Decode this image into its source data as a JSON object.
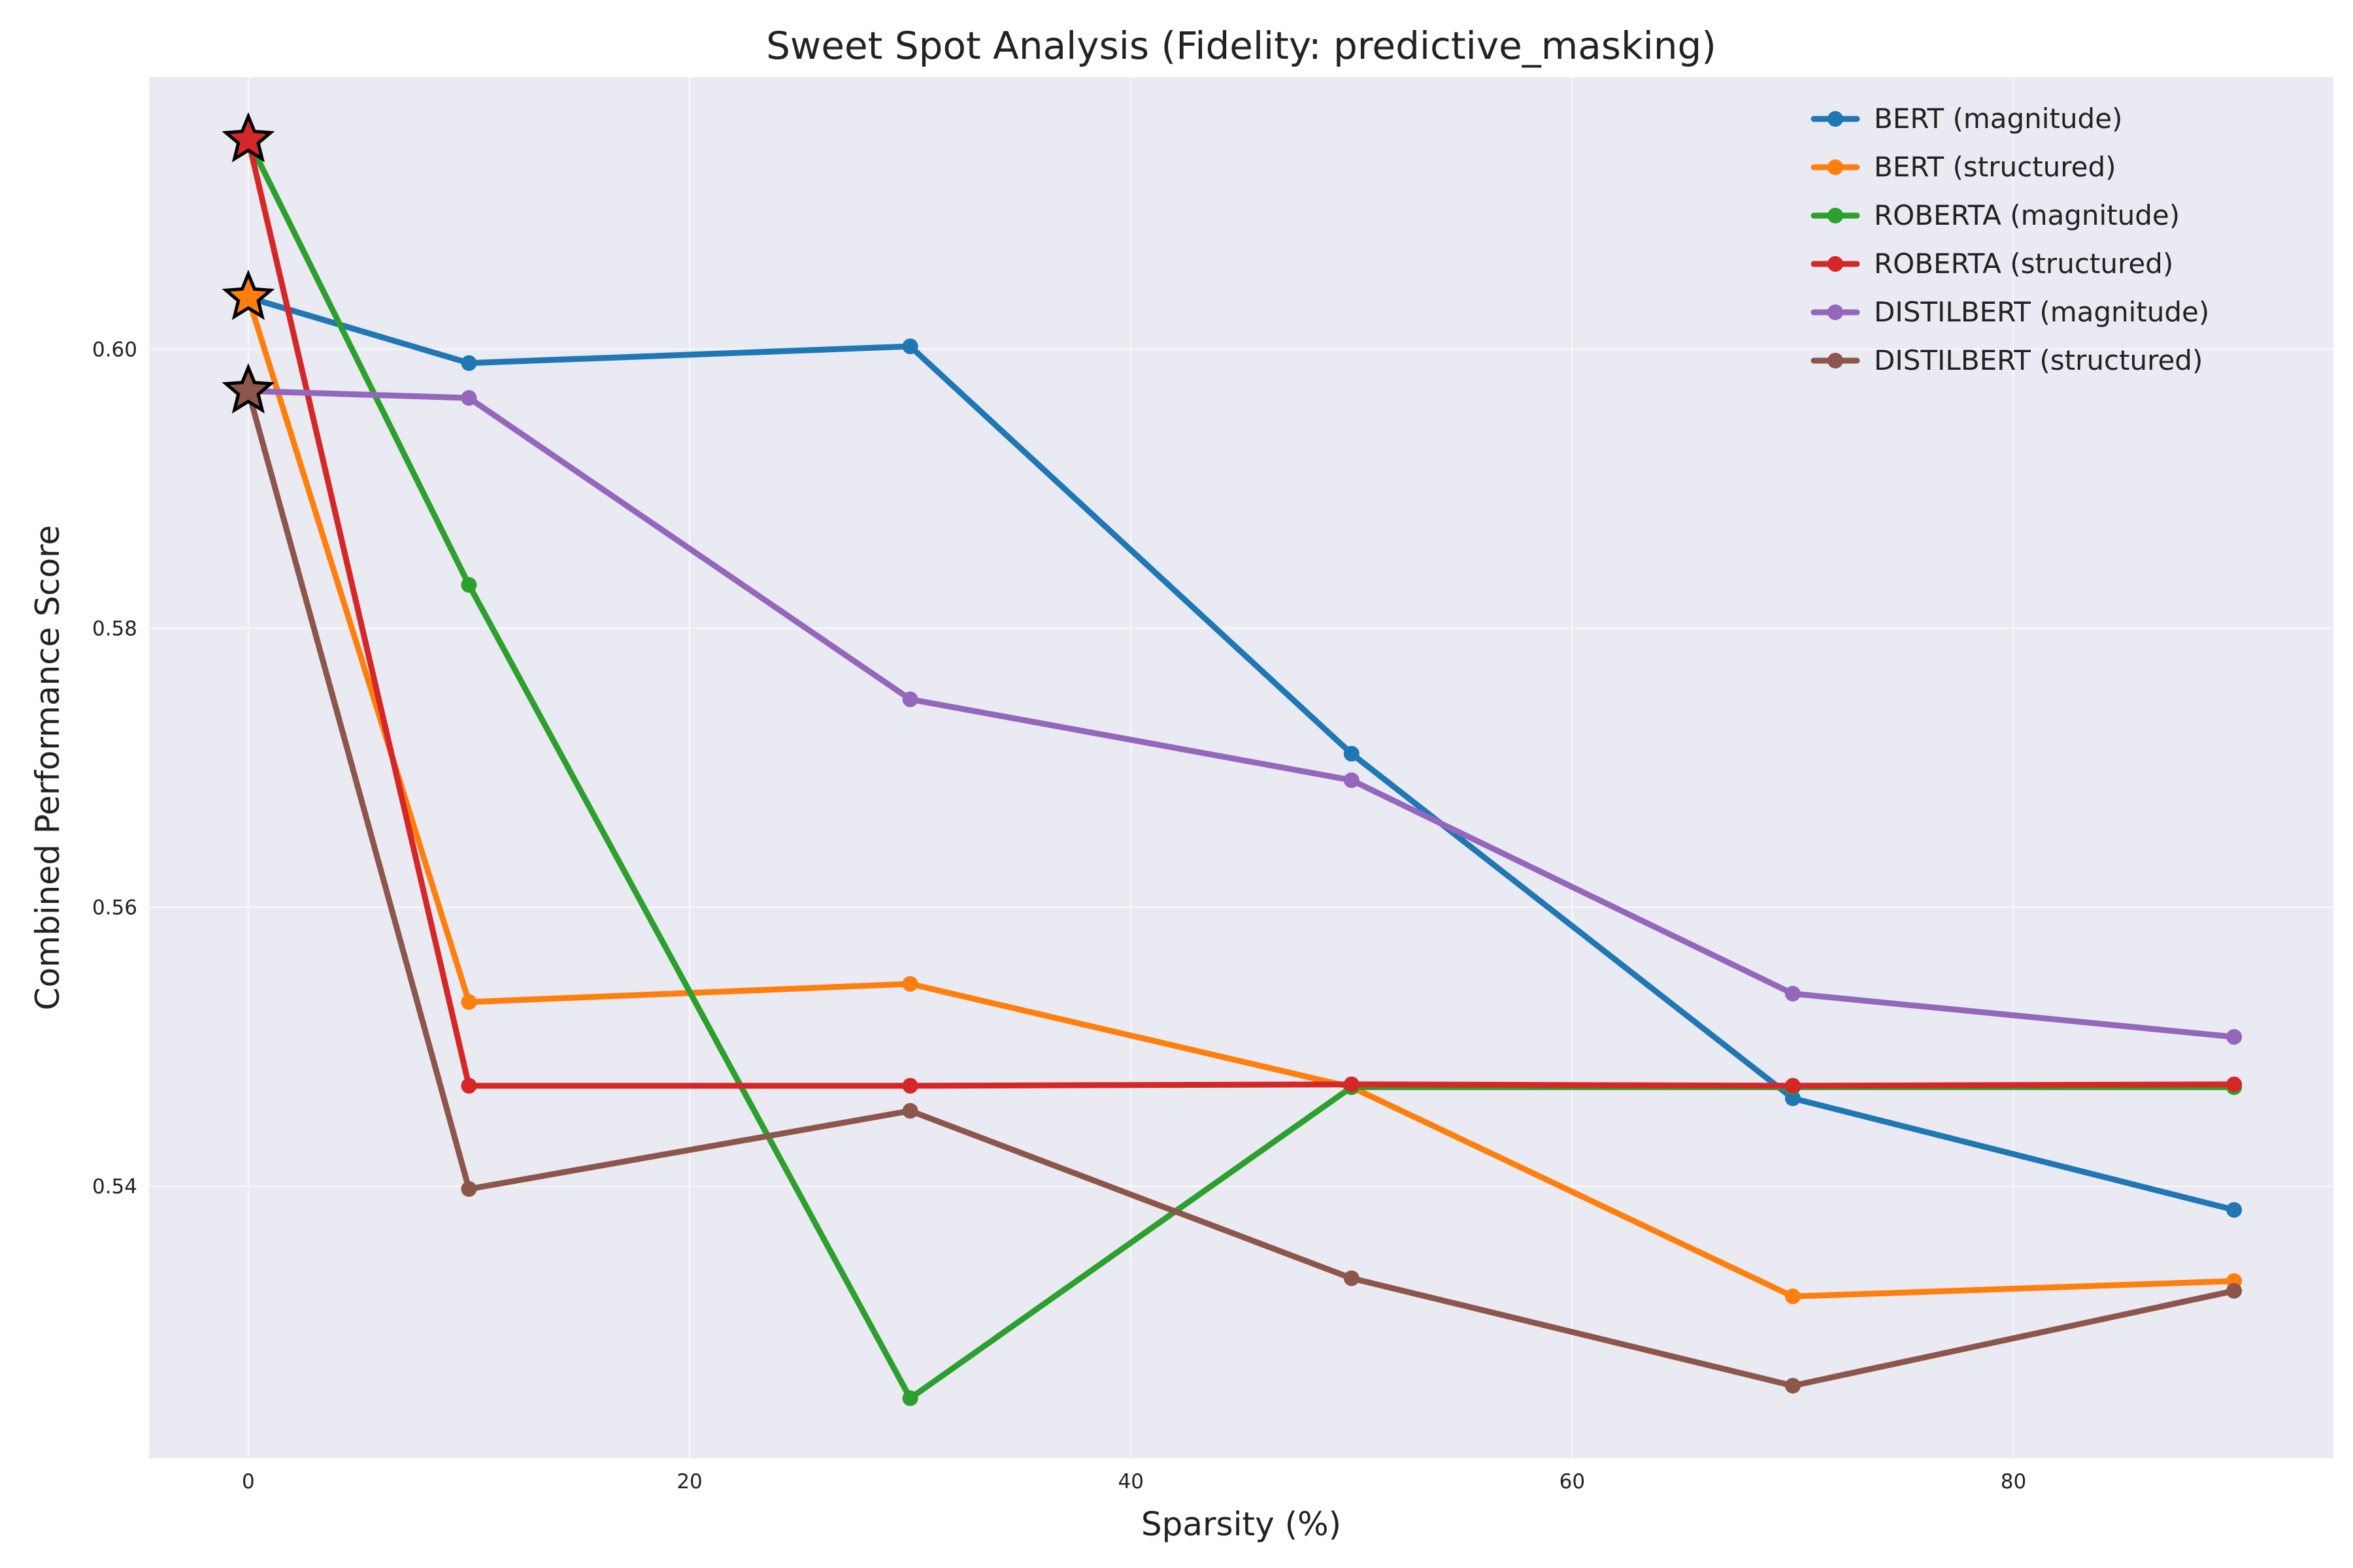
{
  "chart_data": {
    "type": "line",
    "title": "Sweet Spot Analysis (Fidelity: predictive_masking)",
    "xlabel": "Sparsity (%)",
    "ylabel": "Combined Performance Score",
    "x": [
      0,
      10,
      30,
      50,
      70,
      90
    ],
    "xlim": [
      -4.5,
      94.5
    ],
    "ylim": [
      0.5205,
      0.6195
    ],
    "xticks": [
      0,
      20,
      40,
      60,
      80
    ],
    "yticks": [
      0.54,
      0.56,
      0.58,
      0.6
    ],
    "xtick_labels": [
      "0",
      "20",
      "40",
      "60",
      "80"
    ],
    "ytick_labels": [
      "0.54",
      "0.56",
      "0.58",
      "0.60"
    ],
    "grid": true,
    "legend_position": "top-right",
    "series": [
      {
        "name": "BERT (magnitude)",
        "color": "#1f77b4",
        "values": [
          0.6037,
          0.599,
          0.6002,
          0.571,
          0.5463,
          0.5383
        ]
      },
      {
        "name": "BERT (structured)",
        "color": "#ff7f0e",
        "values": [
          0.6037,
          0.5532,
          0.5545,
          0.5471,
          0.5321,
          0.5332
        ]
      },
      {
        "name": "ROBERTA (magnitude)",
        "color": "#2ca02c",
        "values": [
          0.615,
          0.5831,
          0.5248,
          0.5471,
          0.5471,
          0.5471
        ]
      },
      {
        "name": "ROBERTA (structured)",
        "color": "#d62728",
        "values": [
          0.615,
          0.5472,
          0.5472,
          0.5473,
          0.5472,
          0.5473
        ]
      },
      {
        "name": "DISTILBERT (magnitude)",
        "color": "#9467bd",
        "values": [
          0.597,
          0.5965,
          0.5749,
          0.5691,
          0.5538,
          0.5507
        ]
      },
      {
        "name": "DISTILBERT (structured)",
        "color": "#8c564b",
        "values": [
          0.597,
          0.5398,
          0.5454,
          0.5334,
          0.5257,
          0.5325
        ]
      }
    ],
    "sweet_spots": [
      {
        "series": "BERT (structured)",
        "x": 0,
        "y": 0.6037
      },
      {
        "series": "ROBERTA (structured)",
        "x": 0,
        "y": 0.615
      },
      {
        "series": "DISTILBERT (structured)",
        "x": 0,
        "y": 0.597
      }
    ]
  }
}
